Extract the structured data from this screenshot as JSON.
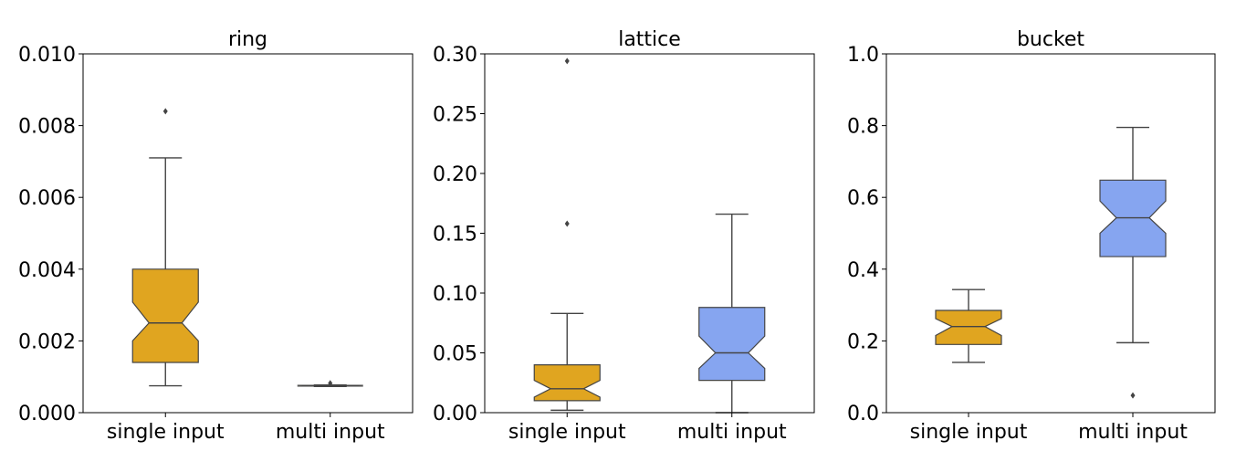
{
  "chart_data": [
    {
      "type": "box",
      "title": "ring",
      "categories": [
        "single input",
        "multi input"
      ],
      "ylim": [
        0,
        0.01
      ],
      "yticks": [
        "0.000",
        "0.002",
        "0.004",
        "0.006",
        "0.008",
        "0.010"
      ],
      "yticks_values": [
        0,
        0.002,
        0.004,
        0.006,
        0.008,
        0.01
      ],
      "grid": false,
      "notched": true,
      "boxes": [
        {
          "category": "single input",
          "color": "#e0a520",
          "whisker_low": 0.00075,
          "q1": 0.0014,
          "notch_low": 0.002,
          "median": 0.0025,
          "notch_high": 0.00308,
          "q3": 0.004,
          "whisker_high": 0.0071,
          "outliers": [
            0.0084
          ]
        },
        {
          "category": "multi input",
          "color": "#e0a520",
          "whisker_low": 0.00073,
          "q1": 0.00074,
          "notch_low": 0.00074,
          "median": 0.00075,
          "notch_high": 0.00076,
          "q3": 0.00076,
          "whisker_high": 0.00077,
          "outliers": [
            0.00082
          ]
        }
      ]
    },
    {
      "type": "box",
      "title": "lattice",
      "categories": [
        "single input",
        "multi input"
      ],
      "ylim": [
        0,
        0.3
      ],
      "yticks": [
        "0.00",
        "0.05",
        "0.10",
        "0.15",
        "0.20",
        "0.25",
        "0.30"
      ],
      "yticks_values": [
        0,
        0.05,
        0.1,
        0.15,
        0.2,
        0.25,
        0.3
      ],
      "grid": false,
      "notched": true,
      "boxes": [
        {
          "category": "single input",
          "color": "#e0a520",
          "whisker_low": 0.002,
          "q1": 0.01,
          "notch_low": 0.013,
          "median": 0.02,
          "notch_high": 0.027,
          "q3": 0.04,
          "whisker_high": 0.083,
          "outliers": [
            0.158,
            0.294
          ]
        },
        {
          "category": "multi input",
          "color": "#86a5f0",
          "whisker_low": 0.0,
          "q1": 0.027,
          "notch_low": 0.037,
          "median": 0.05,
          "notch_high": 0.064,
          "q3": 0.088,
          "whisker_high": 0.166,
          "outliers": []
        }
      ]
    },
    {
      "type": "box",
      "title": "bucket",
      "categories": [
        "single input",
        "multi input"
      ],
      "ylim": [
        0,
        1.0
      ],
      "yticks": [
        "0.0",
        "0.2",
        "0.4",
        "0.6",
        "0.8",
        "1.0"
      ],
      "yticks_values": [
        0,
        0.2,
        0.4,
        0.6,
        0.8,
        1.0
      ],
      "grid": false,
      "notched": true,
      "boxes": [
        {
          "category": "single input",
          "color": "#e0a520",
          "whisker_low": 0.14,
          "q1": 0.19,
          "notch_low": 0.215,
          "median": 0.24,
          "notch_high": 0.262,
          "q3": 0.285,
          "whisker_high": 0.343,
          "outliers": []
        },
        {
          "category": "multi input",
          "color": "#86a5f0",
          "whisker_low": 0.195,
          "q1": 0.435,
          "notch_low": 0.5,
          "median": 0.543,
          "notch_high": 0.59,
          "q3": 0.648,
          "whisker_high": 0.795,
          "outliers": [
            0.048
          ]
        }
      ]
    }
  ]
}
